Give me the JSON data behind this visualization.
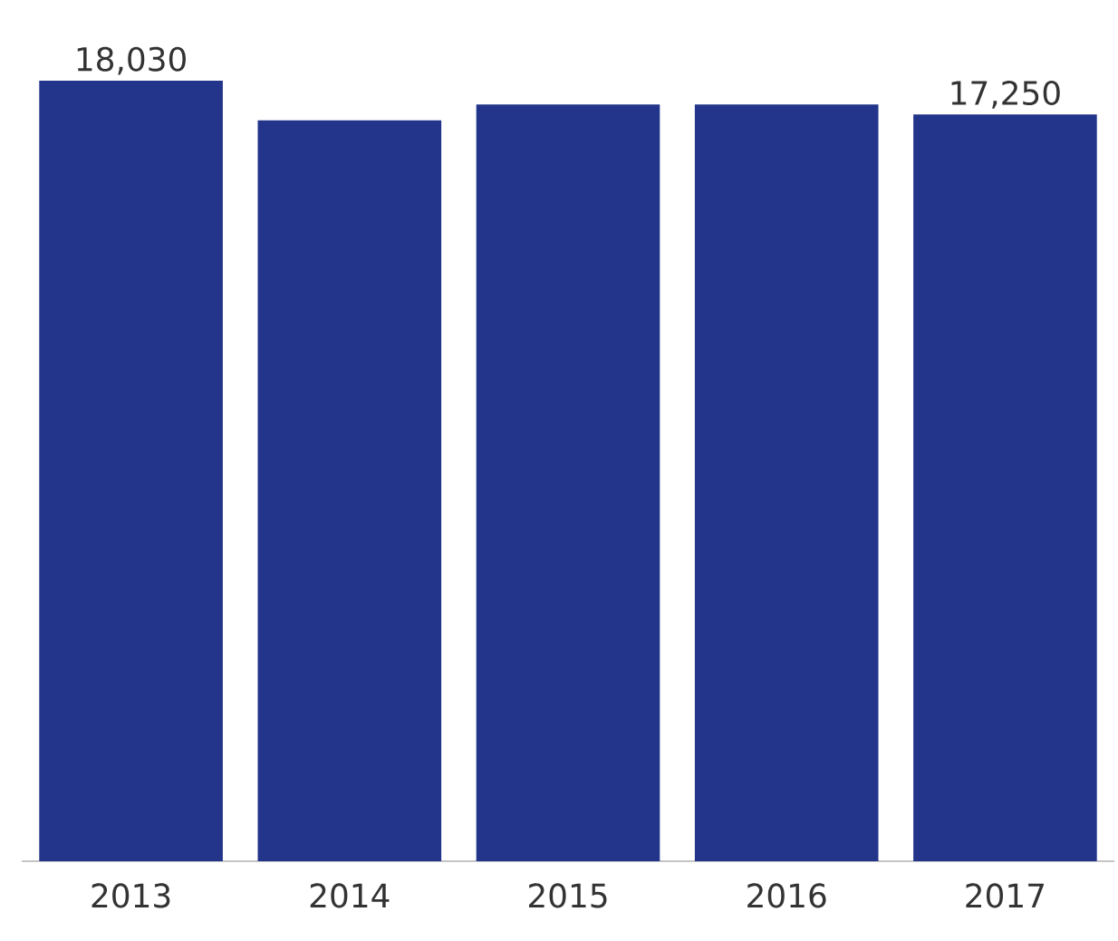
{
  "chart_data": {
    "type": "bar",
    "categories": [
      "2013",
      "2014",
      "2015",
      "2016",
      "2017"
    ],
    "values": [
      18030,
      17110,
      17480,
      17480,
      17250
    ],
    "value_labels": [
      "18,030",
      null,
      null,
      null,
      "17,250"
    ],
    "color": "#23358a"
  }
}
